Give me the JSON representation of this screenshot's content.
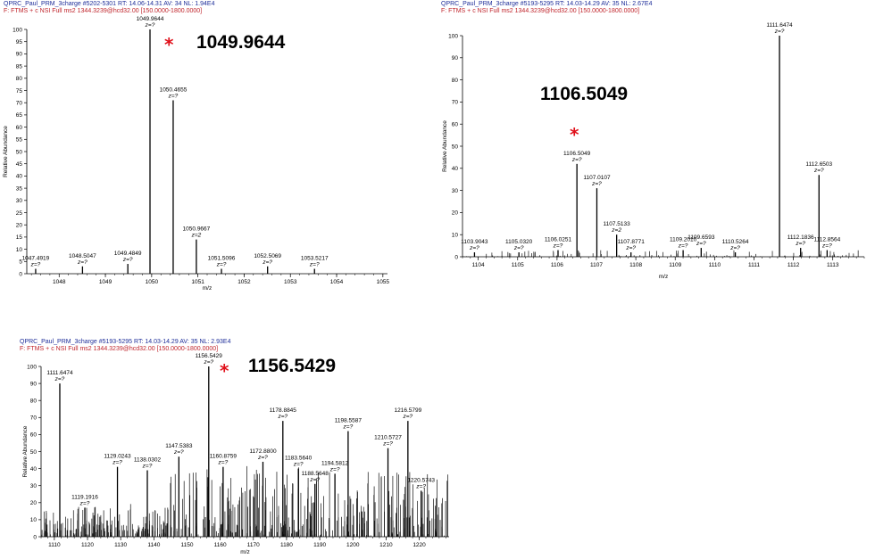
{
  "chart_data": [
    {
      "type": "bar",
      "header_line1": "QPRC_Paul_PRM_3charge #5202-5301   RT: 14.06-14.31   AV: 34   NL: 1.94E4",
      "header_line2": "F: FTMS + c NSI Full ms2 1344.3239@hcd32.00 [150.0000-1800.0000]",
      "xlabel": "m/z",
      "ylabel": "Relative Abundance",
      "xlim": [
        1047.3,
        1055.1
      ],
      "ylim": [
        0,
        100
      ],
      "xticks": [
        "1048",
        "1049",
        "1050",
        "1051",
        "1052",
        "1053",
        "1054",
        "1055"
      ],
      "yticks": [
        "0",
        "5",
        "10",
        "15",
        "20",
        "25",
        "30",
        "35",
        "40",
        "45",
        "50",
        "55",
        "60",
        "65",
        "70",
        "75",
        "80",
        "85",
        "90",
        "95",
        "100"
      ],
      "highlight": "1049.9644",
      "highlight_star": "*",
      "peaks": [
        {
          "mz": 1047.4919,
          "value": 2
        },
        {
          "mz": 1048.5047,
          "value": 3
        },
        {
          "mz": 1049.4849,
          "value": 4
        },
        {
          "mz": 1049.9644,
          "value": 100
        },
        {
          "mz": 1050.4655,
          "value": 71
        },
        {
          "mz": 1050.9667,
          "value": 14
        },
        {
          "mz": 1051.5096,
          "value": 2
        },
        {
          "mz": 1052.5069,
          "value": 3
        },
        {
          "mz": 1053.5217,
          "value": 2
        }
      ],
      "annotations": [
        {
          "mz": 1047.4919,
          "label": "1047.4919",
          "z": "z=?"
        },
        {
          "mz": 1048.5047,
          "label": "1048.5047",
          "z": "z=?"
        },
        {
          "mz": 1049.4849,
          "label": "1049.4849",
          "z": "z=?"
        },
        {
          "mz": 1049.9644,
          "label": "1049.9644",
          "z": "z=?"
        },
        {
          "mz": 1050.4655,
          "label": "1050.4655",
          "z": "z=?"
        },
        {
          "mz": 1050.9667,
          "label": "1050.9667",
          "z": "z=2"
        },
        {
          "mz": 1051.5096,
          "label": "1051.5096",
          "z": "z=?"
        },
        {
          "mz": 1052.5069,
          "label": "1052.5069",
          "z": "z=?"
        },
        {
          "mz": 1053.5217,
          "label": "1053.5217",
          "z": "z=?"
        }
      ]
    },
    {
      "type": "bar",
      "header_line1": "QPRC_Paul_PRM_3charge #5193-5295   RT: 14.03-14.29   AV: 35   NL: 2.67E4",
      "header_line2": "F: FTMS + c NSI Full ms2 1344.3239@hcd32.00 [150.0000-1800.0000]",
      "xlabel": "m/z",
      "ylabel": "Relative Abundance",
      "xlim": [
        1103.6,
        1113.8
      ],
      "ylim": [
        0,
        100
      ],
      "xticks": [
        "1104",
        "1105",
        "1106",
        "1107",
        "1108",
        "1109",
        "1110",
        "1111",
        "1112",
        "1113"
      ],
      "yticks": [
        "0",
        "10",
        "20",
        "30",
        "40",
        "50",
        "60",
        "70",
        "80",
        "90",
        "100"
      ],
      "highlight": "1106.5049",
      "highlight_star": "*",
      "peaks": [
        {
          "mz": 1103.9043,
          "value": 2
        },
        {
          "mz": 1105.032,
          "value": 2
        },
        {
          "mz": 1106.0251,
          "value": 3
        },
        {
          "mz": 1106.5049,
          "value": 42
        },
        {
          "mz": 1107.0107,
          "value": 31
        },
        {
          "mz": 1107.5133,
          "value": 10
        },
        {
          "mz": 1107.8771,
          "value": 2
        },
        {
          "mz": 1109.201,
          "value": 3
        },
        {
          "mz": 1109.6593,
          "value": 4
        },
        {
          "mz": 1110.5264,
          "value": 2
        },
        {
          "mz": 1111.6474,
          "value": 100
        },
        {
          "mz": 1112.1836,
          "value": 4
        },
        {
          "mz": 1112.6503,
          "value": 37
        },
        {
          "mz": 1112.8564,
          "value": 3
        }
      ],
      "annotations": [
        {
          "mz": 1103.9043,
          "label": "1103.9043",
          "z": "z=?"
        },
        {
          "mz": 1105.032,
          "label": "1105.0320",
          "z": "z=?"
        },
        {
          "mz": 1106.0251,
          "label": "1106.0251",
          "z": "z=?"
        },
        {
          "mz": 1106.5049,
          "label": "1106.5049",
          "z": "z=?"
        },
        {
          "mz": 1107.0107,
          "label": "1107.0107",
          "z": "z=?"
        },
        {
          "mz": 1107.5133,
          "label": "1107.5133",
          "z": "z=2"
        },
        {
          "mz": 1107.8771,
          "label": "1107.8771",
          "z": "z=?"
        },
        {
          "mz": 1109.201,
          "label": "1109.2010",
          "z": "z=?"
        },
        {
          "mz": 1109.6593,
          "label": "1109.6593",
          "z": "z=?"
        },
        {
          "mz": 1110.5264,
          "label": "1110.5264",
          "z": "z=?"
        },
        {
          "mz": 1111.6474,
          "label": "1111.6474",
          "z": "z=?"
        },
        {
          "mz": 1112.1836,
          "label": "1112.1836",
          "z": "z=?"
        },
        {
          "mz": 1112.6503,
          "label": "1112.6503",
          "z": "z=?"
        },
        {
          "mz": 1112.8564,
          "label": "1112.8564",
          "z": "z=?"
        }
      ]
    },
    {
      "type": "bar",
      "header_line1": "QPRC_Paul_PRM_3charge #5193-5295   RT: 14.03-14.29   AV: 35   NL: 2.93E4",
      "header_line2": "F: FTMS + c NSI Full ms2 1344.3239@hcd32.00 [150.0000-1800.0000]",
      "xlabel": "m/z",
      "ylabel": "Relative Abundance",
      "xlim": [
        1106,
        1229
      ],
      "ylim": [
        0,
        100
      ],
      "xticks": [
        "1110",
        "1120",
        "1130",
        "1140",
        "1150",
        "1160",
        "1170",
        "1180",
        "1190",
        "1200",
        "1210",
        "1220"
      ],
      "yticks": [
        "0",
        "10",
        "20",
        "30",
        "40",
        "50",
        "60",
        "70",
        "80",
        "90",
        "100"
      ],
      "highlight": "1156.5429",
      "highlight_star": "*",
      "peaks": [
        {
          "mz": 1111.6474,
          "value": 90
        },
        {
          "mz": 1119.1916,
          "value": 17
        },
        {
          "mz": 1129.0243,
          "value": 41
        },
        {
          "mz": 1138.0302,
          "value": 39
        },
        {
          "mz": 1147.5383,
          "value": 47
        },
        {
          "mz": 1156.5429,
          "value": 100
        },
        {
          "mz": 1160.8759,
          "value": 41
        },
        {
          "mz": 1172.88,
          "value": 44
        },
        {
          "mz": 1178.8845,
          "value": 68
        },
        {
          "mz": 1183.564,
          "value": 40
        },
        {
          "mz": 1188.5648,
          "value": 31
        },
        {
          "mz": 1194.5812,
          "value": 37
        },
        {
          "mz": 1198.5587,
          "value": 62
        },
        {
          "mz": 1210.5727,
          "value": 52
        },
        {
          "mz": 1216.5799,
          "value": 68
        },
        {
          "mz": 1220.5743,
          "value": 27
        }
      ],
      "annotations": [
        {
          "mz": 1111.6474,
          "label": "1111.6474",
          "z": "z=?"
        },
        {
          "mz": 1119.1916,
          "label": "1119.1916",
          "z": "z=?"
        },
        {
          "mz": 1129.0243,
          "label": "1129.0243",
          "z": "z=?"
        },
        {
          "mz": 1138.0302,
          "label": "1138.0302",
          "z": "z=?"
        },
        {
          "mz": 1147.5383,
          "label": "1147.5383",
          "z": "z=?"
        },
        {
          "mz": 1156.5429,
          "label": "1156.5429",
          "z": "z=?"
        },
        {
          "mz": 1160.8759,
          "label": "1160.8759",
          "z": "z=?"
        },
        {
          "mz": 1172.88,
          "label": "1172.8800",
          "z": "z=?"
        },
        {
          "mz": 1178.8845,
          "label": "1178.8845",
          "z": "z=?"
        },
        {
          "mz": 1183.564,
          "label": "1183.5640",
          "z": "z=?"
        },
        {
          "mz": 1188.5648,
          "label": "1188.5648",
          "z": "z=?"
        },
        {
          "mz": 1194.5812,
          "label": "1194.5812",
          "z": "z=?"
        },
        {
          "mz": 1198.5587,
          "label": "1198.5587",
          "z": "z=?"
        },
        {
          "mz": 1210.5727,
          "label": "1210.5727",
          "z": "z=?"
        },
        {
          "mz": 1216.5799,
          "label": "1216.5799",
          "z": "z=?"
        },
        {
          "mz": 1220.5743,
          "label": "1220.5743",
          "z": "z=?"
        }
      ]
    }
  ]
}
